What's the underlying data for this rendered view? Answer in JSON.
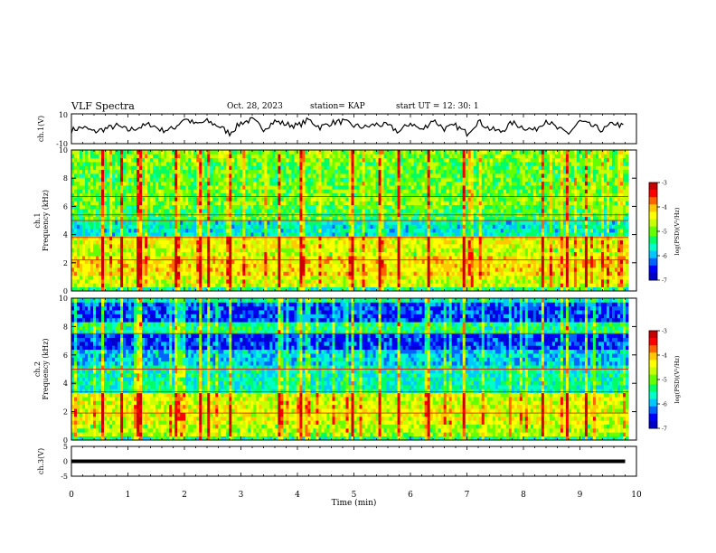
{
  "header": {
    "title": "VLF Spectra",
    "date": "Oct. 28, 2023",
    "station": "station= KAP",
    "start_ut": "start  UT =   12: 30: 1"
  },
  "colors": {
    "trace": "#000000",
    "colormap": [
      "#0000c8",
      "#0000ff",
      "#0064ff",
      "#00c8ff",
      "#00ffc8",
      "#00ff64",
      "#64ff00",
      "#c8ff00",
      "#ffff00",
      "#ffc800",
      "#ff6400",
      "#ff0000",
      "#c80000"
    ]
  },
  "chart_data": [
    {
      "type": "line",
      "ylabel": "ch.1(V)",
      "ylim": [
        -10,
        10
      ],
      "yticks": [
        "10",
        "-10"
      ],
      "xlim": [
        0,
        10
      ],
      "series": [
        {
          "x": [
            0,
            0.2,
            0.4,
            0.6,
            0.8,
            1.0,
            1.2,
            1.4,
            1.6,
            1.8,
            2.0,
            2.2,
            2.4,
            2.6,
            2.8,
            3.0,
            3.2,
            3.4,
            3.6,
            3.8,
            4.0,
            4.2,
            4.4,
            4.6,
            4.8,
            5.0,
            5.2,
            5.4,
            5.6,
            5.8,
            6.0,
            6.2,
            6.4,
            6.6,
            6.8,
            7.0,
            7.2,
            7.4,
            7.6,
            7.8,
            8.0,
            8.2,
            8.4,
            8.6,
            8.8,
            9.0,
            9.2,
            9.4,
            9.6,
            9.8
          ],
          "values": [
            -1,
            1,
            -2,
            0,
            2,
            -1,
            1,
            3,
            -1,
            0,
            7,
            3,
            5,
            2,
            -3,
            4,
            6,
            0,
            5,
            3,
            2,
            6,
            1,
            4,
            5,
            2,
            1,
            3,
            2,
            -2,
            4,
            -1,
            6,
            0,
            2,
            -3,
            5,
            0,
            -2,
            4,
            1,
            -1,
            6,
            0,
            -3,
            5,
            2,
            -1,
            4,
            1
          ]
        }
      ]
    },
    {
      "type": "heatmap",
      "ylabel": "ch.1\nFrequency (kHz)",
      "yticks": [
        "0",
        "2",
        "4",
        "6",
        "8",
        "10"
      ],
      "ylim": [
        0,
        10
      ],
      "xlim": [
        0,
        10
      ],
      "colorbar": {
        "label": "log(PSD)(V²/Hz)",
        "range": [
          -7,
          -3
        ],
        "ticks": [
          "-3",
          "-4",
          "-5",
          "-6",
          "-7"
        ]
      },
      "bands": [
        {
          "from": 0,
          "to": 0.3,
          "level": 0.38
        },
        {
          "from": 0.3,
          "to": 1.0,
          "level": 0.6
        },
        {
          "from": 1.0,
          "to": 2.4,
          "level": 0.68
        },
        {
          "from": 2.4,
          "to": 3.0,
          "level": 0.58
        },
        {
          "from": 3.0,
          "to": 3.8,
          "level": 0.64
        },
        {
          "from": 3.8,
          "to": 5.0,
          "level": 0.34
        },
        {
          "from": 5.0,
          "to": 6.0,
          "level": 0.46
        },
        {
          "from": 6.0,
          "to": 6.6,
          "level": 0.52
        },
        {
          "from": 6.6,
          "to": 7.8,
          "level": 0.5
        },
        {
          "from": 7.8,
          "to": 9.2,
          "level": 0.48
        },
        {
          "from": 9.2,
          "to": 10,
          "level": 0.52
        }
      ],
      "lines_khz": [
        2.2,
        3.8,
        5.0,
        5.4,
        6.7
      ],
      "bursts_min": [
        0.55,
        0.9,
        1.18,
        1.22,
        1.85,
        2.3,
        2.42,
        2.85,
        3.7,
        4.1,
        5.0,
        5.5,
        5.85,
        6.4,
        7.0,
        8.45,
        8.9,
        9.2
      ]
    },
    {
      "type": "heatmap",
      "ylabel": "ch.2\nFrequency (kHz)",
      "yticks": [
        "0",
        "2",
        "4",
        "6",
        "8",
        "10"
      ],
      "ylim": [
        0,
        10
      ],
      "xlim": [
        0,
        10
      ],
      "colorbar": {
        "label": "log(PSD)(V²/Hz)",
        "range": [
          -7,
          -3
        ],
        "ticks": [
          "-3",
          "-4",
          "-5",
          "-6",
          "-7"
        ]
      },
      "bands": [
        {
          "from": 0,
          "to": 0.3,
          "level": 0.38
        },
        {
          "from": 0.3,
          "to": 1.0,
          "level": 0.56
        },
        {
          "from": 1.0,
          "to": 2.4,
          "level": 0.62
        },
        {
          "from": 2.4,
          "to": 3.4,
          "level": 0.6
        },
        {
          "from": 3.4,
          "to": 5.2,
          "level": 0.36
        },
        {
          "from": 5.2,
          "to": 6.4,
          "level": 0.28
        },
        {
          "from": 6.4,
          "to": 7.6,
          "level": 0.14
        },
        {
          "from": 7.6,
          "to": 8.2,
          "level": 0.4
        },
        {
          "from": 8.2,
          "to": 9.6,
          "level": 0.16
        },
        {
          "from": 9.6,
          "to": 10,
          "level": 0.36
        }
      ],
      "lines_khz": [
        1.9,
        3.4,
        5.0,
        7.5
      ],
      "bursts_min": [
        0.55,
        0.9,
        1.18,
        1.22,
        1.85,
        2.3,
        2.42,
        2.85,
        3.7,
        4.1,
        5.0,
        5.5,
        5.85,
        6.4,
        7.0,
        8.45,
        8.9,
        9.2
      ]
    },
    {
      "type": "line",
      "ylabel": "ch.3(V)",
      "ylim": [
        -5,
        5
      ],
      "yticks": [
        "5",
        "0",
        "-5"
      ],
      "xlim": [
        0,
        10
      ],
      "xlabel": "Time (min)",
      "xticks": [
        "0",
        "1",
        "2",
        "3",
        "4",
        "5",
        "6",
        "7",
        "8",
        "9",
        "10"
      ],
      "series": [
        {
          "x": [
            0,
            9.8
          ],
          "values": [
            0,
            0
          ],
          "amplitude": 0.6
        }
      ]
    }
  ]
}
